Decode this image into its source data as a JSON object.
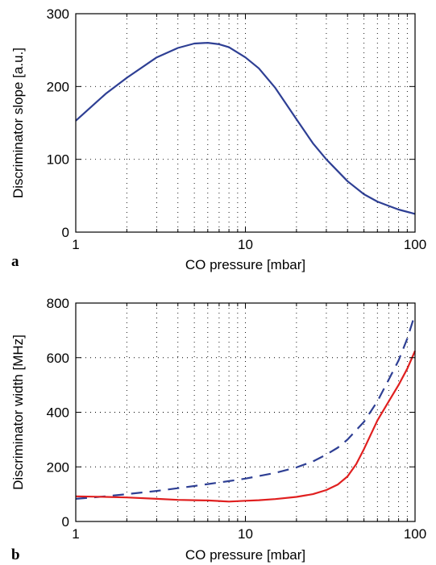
{
  "chart_data": [
    {
      "type": "line",
      "panel_label": "a",
      "xscale": "log",
      "xlim": [
        1,
        100
      ],
      "ylim": [
        0,
        300
      ],
      "xticks": [
        1,
        10,
        100
      ],
      "xtick_labels": [
        "1",
        "10",
        "100"
      ],
      "yticks": [
        0,
        100,
        200,
        300
      ],
      "ytick_labels": [
        "0",
        "100",
        "200",
        "300"
      ],
      "xlabel": "CO pressure [mbar]",
      "ylabel": "Discriminator slope [a.u.]",
      "grid": true,
      "series": [
        {
          "style": "solid",
          "color": "#2e3f94",
          "x": [
            1,
            1.5,
            2,
            3,
            4,
            5,
            6,
            7,
            8,
            10,
            12,
            15,
            20,
            25,
            30,
            40,
            50,
            60,
            70,
            80,
            100
          ],
          "y": [
            153,
            190,
            212,
            240,
            253,
            259,
            260,
            258,
            254,
            240,
            225,
            198,
            155,
            122,
            100,
            70,
            52,
            42,
            36,
            31,
            25
          ]
        }
      ]
    },
    {
      "type": "line",
      "panel_label": "b",
      "xscale": "log",
      "xlim": [
        1,
        100
      ],
      "ylim": [
        0,
        800
      ],
      "xticks": [
        1,
        10,
        100
      ],
      "xtick_labels": [
        "1",
        "10",
        "100"
      ],
      "yticks": [
        0,
        200,
        400,
        600,
        800
      ],
      "ytick_labels": [
        "0",
        "200",
        "400",
        "600",
        "800"
      ],
      "xlabel": "CO pressure [mbar]",
      "ylabel": "Discriminator width [MHz]",
      "grid": true,
      "series": [
        {
          "style": "dashed",
          "color": "#2e3f94",
          "x": [
            1,
            1.5,
            2,
            3,
            4,
            5,
            6,
            8,
            10,
            15,
            20,
            25,
            30,
            35,
            40,
            50,
            60,
            70,
            80,
            90,
            100
          ],
          "y": [
            83,
            92,
            100,
            112,
            122,
            130,
            137,
            148,
            157,
            178,
            198,
            220,
            245,
            270,
            300,
            365,
            440,
            520,
            590,
            670,
            760
          ]
        },
        {
          "style": "solid",
          "color": "#e01f1f",
          "x": [
            1,
            1.5,
            2,
            3,
            4,
            5,
            6,
            7,
            8,
            10,
            12,
            15,
            20,
            25,
            30,
            35,
            40,
            45,
            50,
            60,
            70,
            80,
            90,
            100
          ],
          "y": [
            92,
            90,
            88,
            83,
            79,
            78,
            77,
            75,
            73,
            76,
            78,
            82,
            90,
            100,
            115,
            135,
            165,
            210,
            265,
            370,
            440,
            500,
            560,
            625
          ]
        }
      ]
    }
  ]
}
